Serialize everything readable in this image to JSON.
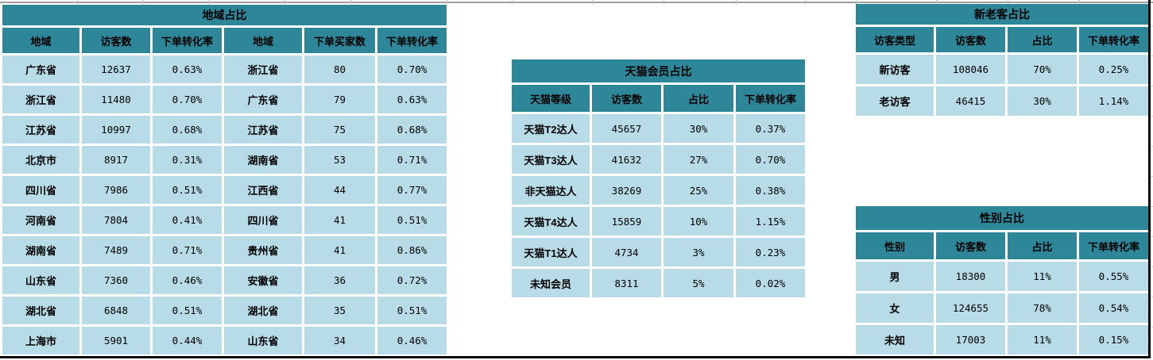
{
  "colors": {
    "table_header_fill": "#2E8699",
    "table_row_fill": "#B7DCE8",
    "gridline_gray": "#c4c4c4",
    "page_border_black": "#0a0a0a"
  },
  "tables": {
    "region": {
      "title": "地域占比",
      "headers": [
        "地域",
        "访客数",
        "下单转化率",
        "地域",
        "下单买家数",
        "下单转化率"
      ],
      "rows": [
        [
          "广东省",
          "12637",
          "0.63%",
          "浙江省",
          "80",
          "0.70%"
        ],
        [
          "浙江省",
          "11480",
          "0.70%",
          "广东省",
          "79",
          "0.63%"
        ],
        [
          "江苏省",
          "10997",
          "0.68%",
          "江苏省",
          "75",
          "0.68%"
        ],
        [
          "北京市",
          "8917",
          "0.31%",
          "湖南省",
          "53",
          "0.71%"
        ],
        [
          "四川省",
          "7986",
          "0.51%",
          "江西省",
          "44",
          "0.77%"
        ],
        [
          "河南省",
          "7804",
          "0.41%",
          "四川省",
          "41",
          "0.51%"
        ],
        [
          "湖南省",
          "7489",
          "0.71%",
          "贵州省",
          "41",
          "0.86%"
        ],
        [
          "山东省",
          "7360",
          "0.46%",
          "安徽省",
          "36",
          "0.72%"
        ],
        [
          "湖北省",
          "6848",
          "0.51%",
          "湖北省",
          "35",
          "0.51%"
        ],
        [
          "上海市",
          "5901",
          "0.44%",
          "山东省",
          "34",
          "0.46%"
        ]
      ]
    },
    "tmall": {
      "title": "天猫会员占比",
      "headers": [
        "天猫等级",
        "访客数",
        "占比",
        "下单转化率"
      ],
      "rows": [
        [
          "天猫T2达人",
          "45657",
          "30%",
          "0.37%"
        ],
        [
          "天猫T3达人",
          "41632",
          "27%",
          "0.70%"
        ],
        [
          "非天猫达人",
          "38269",
          "25%",
          "0.38%"
        ],
        [
          "天猫T4达人",
          "15859",
          "10%",
          "1.15%"
        ],
        [
          "天猫T1达人",
          "4734",
          "3%",
          "0.23%"
        ],
        [
          "未知会员",
          "8311",
          "5%",
          "0.02%"
        ]
      ]
    },
    "visitor_type": {
      "title": "新老客占比",
      "headers": [
        "访客类型",
        "访客数",
        "占比",
        "下单转化率"
      ],
      "rows": [
        [
          "新访客",
          "108046",
          "70%",
          "0.25%"
        ],
        [
          "老访客",
          "46415",
          "30%",
          "1.14%"
        ]
      ]
    },
    "gender": {
      "title": "性别占比",
      "headers": [
        "性别",
        "访客数",
        "占比",
        "下单转化率"
      ],
      "rows": [
        [
          "男",
          "18300",
          "11%",
          "0.55%"
        ],
        [
          "女",
          "124655",
          "78%",
          "0.54%"
        ],
        [
          "未知",
          "17003",
          "11%",
          "0.15%"
        ]
      ]
    }
  }
}
